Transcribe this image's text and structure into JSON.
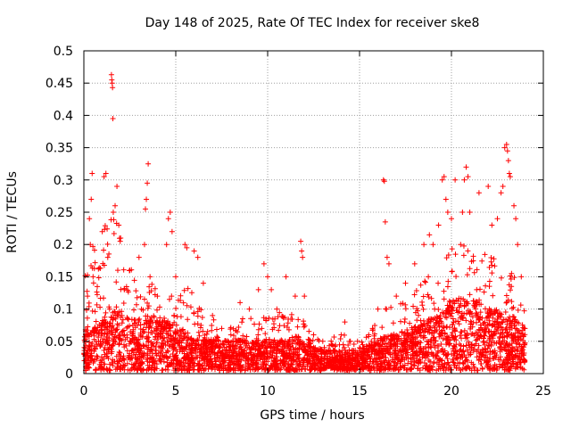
{
  "chart_data": {
    "type": "scatter",
    "title": "Day 148 of 2025, Rate Of TEC Index for receiver ske8",
    "xlabel": "GPS time / hours",
    "ylabel": "ROTI / TECUs",
    "xlim": [
      0,
      25
    ],
    "ylim": [
      0,
      0.5
    ],
    "xticks": [
      "0",
      "5",
      "10",
      "15",
      "20",
      "25"
    ],
    "yticks": [
      "0",
      "0.05",
      "0.1",
      "0.15",
      "0.2",
      "0.25",
      "0.3",
      "0.35",
      "0.4",
      "0.45",
      "0.5"
    ],
    "grid": true,
    "marker": "+",
    "color": "#ff0000",
    "series": [
      {
        "name": "ROTI",
        "points": [
          [
            0.1,
            0.06
          ],
          [
            0.2,
            0.12
          ],
          [
            0.3,
            0.24
          ],
          [
            0.35,
            0.2
          ],
          [
            0.4,
            0.27
          ],
          [
            0.45,
            0.31
          ],
          [
            0.5,
            0.15
          ],
          [
            0.8,
            0.05
          ],
          [
            1.0,
            0.22
          ],
          [
            1.1,
            0.305
          ],
          [
            1.2,
            0.31
          ],
          [
            1.3,
            0.18
          ],
          [
            1.4,
            0.1
          ],
          [
            1.5,
            0.463
          ],
          [
            1.52,
            0.455
          ],
          [
            1.54,
            0.45
          ],
          [
            1.56,
            0.443
          ],
          [
            1.58,
            0.395
          ],
          [
            1.6,
            0.25
          ],
          [
            1.7,
            0.26
          ],
          [
            1.8,
            0.29
          ],
          [
            1.9,
            0.23
          ],
          [
            2.0,
            0.21
          ],
          [
            2.2,
            0.13
          ],
          [
            2.5,
            0.16
          ],
          [
            3.0,
            0.18
          ],
          [
            3.3,
            0.2
          ],
          [
            3.35,
            0.255
          ],
          [
            3.4,
            0.27
          ],
          [
            3.45,
            0.295
          ],
          [
            3.5,
            0.325
          ],
          [
            3.6,
            0.15
          ],
          [
            4.0,
            0.12
          ],
          [
            4.5,
            0.2
          ],
          [
            4.6,
            0.24
          ],
          [
            4.7,
            0.25
          ],
          [
            4.8,
            0.22
          ],
          [
            5.0,
            0.15
          ],
          [
            5.5,
            0.2
          ],
          [
            5.6,
            0.195
          ],
          [
            6.0,
            0.19
          ],
          [
            6.2,
            0.18
          ],
          [
            6.5,
            0.14
          ],
          [
            7.0,
            0.09
          ],
          [
            7.5,
            0.07
          ],
          [
            8.0,
            0.06
          ],
          [
            8.5,
            0.11
          ],
          [
            9.0,
            0.1
          ],
          [
            9.5,
            0.13
          ],
          [
            9.8,
            0.17
          ],
          [
            10.0,
            0.15
          ],
          [
            10.2,
            0.13
          ],
          [
            10.5,
            0.1
          ],
          [
            11.0,
            0.15
          ],
          [
            11.5,
            0.12
          ],
          [
            11.8,
            0.205
          ],
          [
            11.85,
            0.19
          ],
          [
            11.9,
            0.18
          ],
          [
            12.0,
            0.12
          ],
          [
            12.5,
            0.06
          ],
          [
            13.0,
            0.05
          ],
          [
            13.5,
            0.045
          ],
          [
            14.0,
            0.06
          ],
          [
            14.2,
            0.08
          ],
          [
            14.5,
            0.05
          ],
          [
            15.0,
            0.04
          ],
          [
            15.5,
            0.06
          ],
          [
            16.0,
            0.1
          ],
          [
            16.3,
            0.3
          ],
          [
            16.35,
            0.298
          ],
          [
            16.4,
            0.235
          ],
          [
            16.5,
            0.18
          ],
          [
            16.6,
            0.17
          ],
          [
            17.0,
            0.12
          ],
          [
            17.5,
            0.14
          ],
          [
            18.0,
            0.17
          ],
          [
            18.5,
            0.2
          ],
          [
            18.8,
            0.215
          ],
          [
            19.0,
            0.2
          ],
          [
            19.3,
            0.23
          ],
          [
            19.5,
            0.3
          ],
          [
            19.6,
            0.305
          ],
          [
            19.7,
            0.27
          ],
          [
            19.8,
            0.25
          ],
          [
            20.0,
            0.24
          ],
          [
            20.2,
            0.3
          ],
          [
            20.5,
            0.2
          ],
          [
            20.6,
            0.25
          ],
          [
            20.7,
            0.3
          ],
          [
            20.8,
            0.32
          ],
          [
            20.9,
            0.305
          ],
          [
            21.0,
            0.25
          ],
          [
            21.5,
            0.28
          ],
          [
            22.0,
            0.29
          ],
          [
            22.2,
            0.23
          ],
          [
            22.5,
            0.24
          ],
          [
            22.7,
            0.28
          ],
          [
            22.8,
            0.29
          ],
          [
            22.9,
            0.35
          ],
          [
            23.0,
            0.355
          ],
          [
            23.05,
            0.345
          ],
          [
            23.1,
            0.33
          ],
          [
            23.15,
            0.31
          ],
          [
            23.2,
            0.305
          ],
          [
            23.4,
            0.26
          ],
          [
            23.5,
            0.24
          ],
          [
            23.6,
            0.2
          ],
          [
            23.8,
            0.15
          ],
          [
            24.0,
            0.07
          ]
        ]
      }
    ],
    "density_profile": [
      [
        0.0,
        0.04,
        0.15
      ],
      [
        0.5,
        0.04,
        0.2
      ],
      [
        1.0,
        0.05,
        0.22
      ],
      [
        1.5,
        0.06,
        0.24
      ],
      [
        2.0,
        0.06,
        0.22
      ],
      [
        2.5,
        0.05,
        0.16
      ],
      [
        3.0,
        0.05,
        0.15
      ],
      [
        3.5,
        0.05,
        0.14
      ],
      [
        4.0,
        0.05,
        0.13
      ],
      [
        4.5,
        0.05,
        0.16
      ],
      [
        5.0,
        0.04,
        0.14
      ],
      [
        5.5,
        0.04,
        0.13
      ],
      [
        6.0,
        0.03,
        0.12
      ],
      [
        6.5,
        0.03,
        0.09
      ],
      [
        7.0,
        0.03,
        0.08
      ],
      [
        7.5,
        0.03,
        0.07
      ],
      [
        8.0,
        0.03,
        0.07
      ],
      [
        8.5,
        0.03,
        0.08
      ],
      [
        9.0,
        0.03,
        0.09
      ],
      [
        9.5,
        0.03,
        0.11
      ],
      [
        10.0,
        0.03,
        0.1
      ],
      [
        10.5,
        0.03,
        0.09
      ],
      [
        11.0,
        0.03,
        0.09
      ],
      [
        11.5,
        0.03,
        0.1
      ],
      [
        12.0,
        0.03,
        0.09
      ],
      [
        12.5,
        0.025,
        0.06
      ],
      [
        13.0,
        0.02,
        0.05
      ],
      [
        13.5,
        0.02,
        0.05
      ],
      [
        14.0,
        0.02,
        0.06
      ],
      [
        14.5,
        0.02,
        0.05
      ],
      [
        15.0,
        0.02,
        0.05
      ],
      [
        15.5,
        0.025,
        0.06
      ],
      [
        16.0,
        0.03,
        0.08
      ],
      [
        16.5,
        0.035,
        0.1
      ],
      [
        17.0,
        0.035,
        0.1
      ],
      [
        17.5,
        0.04,
        0.11
      ],
      [
        18.0,
        0.045,
        0.13
      ],
      [
        18.5,
        0.05,
        0.15
      ],
      [
        19.0,
        0.05,
        0.16
      ],
      [
        19.5,
        0.06,
        0.18
      ],
      [
        20.0,
        0.07,
        0.2
      ],
      [
        20.5,
        0.07,
        0.2
      ],
      [
        21.0,
        0.07,
        0.2
      ],
      [
        21.5,
        0.07,
        0.19
      ],
      [
        22.0,
        0.06,
        0.18
      ],
      [
        22.5,
        0.06,
        0.17
      ],
      [
        23.0,
        0.05,
        0.17
      ],
      [
        23.5,
        0.05,
        0.14
      ],
      [
        24.0,
        0.04,
        0.1
      ]
    ]
  }
}
